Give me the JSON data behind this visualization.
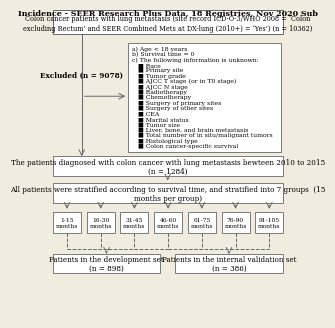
{
  "title_bold": "Incidence - SEER Research Plus Data, 18 Registries, Nov 2020 Sub",
  "title_normal": "Colon cancer patients with lung metastasis (site record ICD-O-3/WHO 2008 = ‘Colon\nexcluding Rectum’ and SEER Combined Mets at DX-lung (2010+) = ‘Yes’) (n = 10362)",
  "excluded_label": "Excluded (n = 9078)",
  "exclusion_criteria": [
    "a) Age < 18 years",
    "b) Survival time = 0",
    "c) The following information is unknown:",
    "   ■ Race",
    "   ■ Primary site",
    "   ■ Tumor grade",
    "   ■ AJCC T stage (or in T0 stage)",
    "   ■ AJCC N stage",
    "   ■ Radiotherapy",
    "   ■ Chemotherapy",
    "   ■ Surgery of primary sites",
    "   ■ Surgery of other sites",
    "   ■ CEA",
    "   ■ Marital status",
    "   ■ Tumor size",
    "   ■ Liver, bone, and brain metastasis",
    "   ■ Total number of in situ/malignant tumors",
    "   ■ Histological type",
    "   ■ Colon cancer-specific survival"
  ],
  "box2_text": "The patients diagnosed with colon cancer with lung metastasis bewteen 2010 to 2015\n(n = 1284)",
  "box3_text": "All patients were stratified according to survival time, and stratified into 7 groups  (15\nmonths per group)",
  "groups": [
    "1-15\nmonths",
    "16-30\nmonths",
    "31-45\nmonths",
    "46-60\nmonths",
    "61-75\nmonths",
    "76-90\nmonths",
    "91-105\nmonths"
  ],
  "dev_set": "Patients in the development set\n(n = 898)",
  "val_set": "Patients in the internal validation set\n(n = 386)",
  "bg_color": "#f0ece0",
  "box_color": "#ffffff",
  "box_edge": "#666666",
  "arrow_color": "#666666",
  "font_size": 5.2,
  "title_font_size": 5.8
}
